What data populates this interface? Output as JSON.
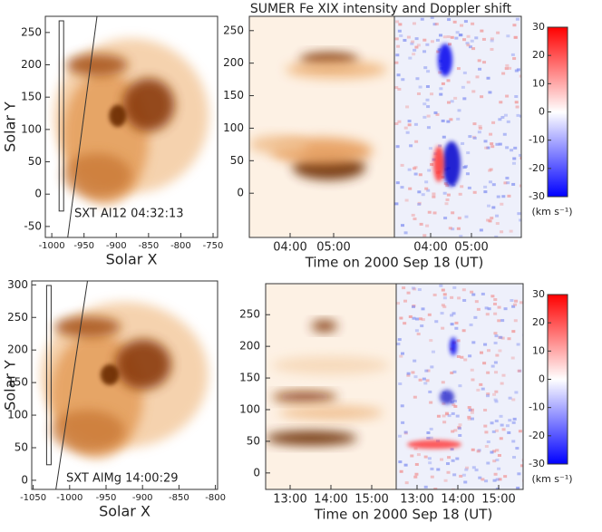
{
  "title": "SUMER Fe XIX intensity and Doppler shift",
  "panels": [
    {
      "sxt": {
        "xlabel": "Solar X",
        "ylabel": "Solar Y",
        "xlim": [
          -1010,
          -743
        ],
        "ylim": [
          -67,
          275
        ],
        "xticks": [
          -1000,
          -950,
          -900,
          -850,
          -800,
          -750
        ],
        "yticks": [
          -50,
          0,
          50,
          100,
          150,
          200,
          250
        ],
        "annotation": "SXT  Al12 04:32:13"
      },
      "sumer": {
        "ylim": [
          -68,
          272
        ],
        "yticks": [
          0,
          50,
          100,
          150,
          200,
          250
        ],
        "intensity_times": [
          "04:00",
          "05:00"
        ],
        "doppler_times": [
          "04:00",
          "05:00"
        ],
        "xlabel": "Time on 2000 Sep 18 (UT)"
      },
      "colorbar": {
        "ylim": [
          -30,
          30
        ],
        "yticks": [
          -30,
          -20,
          -10,
          0,
          10,
          20,
          30
        ],
        "unit": "(km s⁻¹)"
      }
    },
    {
      "sxt": {
        "xlabel": "Solar X",
        "ylabel": "Solar Y",
        "xlim": [
          -1052,
          -797
        ],
        "ylim": [
          -14,
          306
        ],
        "xticks": [
          -1050,
          -1000,
          -950,
          -900,
          -850,
          -800
        ],
        "yticks": [
          0,
          50,
          100,
          150,
          200,
          250,
          300
        ],
        "annotation": "SXT  AlMg  14:00:29"
      },
      "sumer": {
        "ylim": [
          -26,
          299
        ],
        "yticks": [
          0,
          50,
          100,
          150,
          200,
          250
        ],
        "intensity_times": [
          "13:00",
          "14:00",
          "15:00"
        ],
        "doppler_times": [
          "13:00",
          "14:00",
          "15:00"
        ],
        "xlabel": "Time on 2000 Sep 18 (UT)"
      },
      "colorbar": {
        "ylim": [
          -30,
          30
        ],
        "yticks": [
          -30,
          -20,
          -10,
          0,
          10,
          20,
          30
        ],
        "unit": "(km s⁻¹)"
      }
    }
  ]
}
